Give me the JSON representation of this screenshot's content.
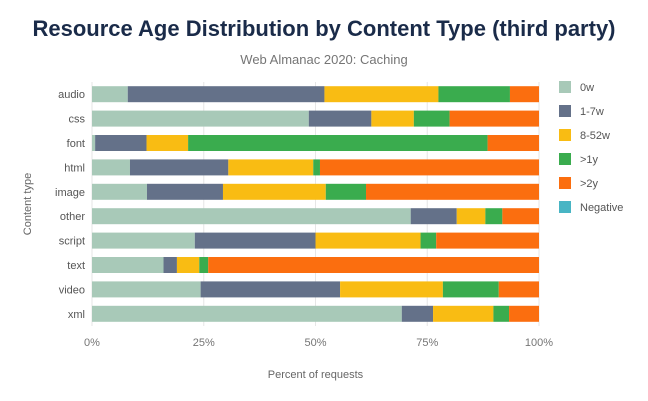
{
  "chart_data": {
    "type": "bar",
    "orientation": "horizontal",
    "stacked": true,
    "title": "Resource Age Distribution by Content Type (third party)",
    "subtitle": "Web Almanac 2020: Caching",
    "xlabel": "Percent of requests",
    "ylabel": "Content type",
    "xlim": [
      0,
      100
    ],
    "x_ticks": [
      "0%",
      "25%",
      "50%",
      "75%",
      "100%"
    ],
    "grid": true,
    "legend_position": "right",
    "categories": [
      "audio",
      "css",
      "font",
      "html",
      "image",
      "other",
      "script",
      "text",
      "video",
      "xml"
    ],
    "series": [
      {
        "name": "0w",
        "color": "#a8c9b8",
        "values": [
          8.0,
          48.5,
          0.7,
          8.5,
          12.3,
          71.3,
          23.0,
          16.0,
          24.3,
          69.3
        ]
      },
      {
        "name": "1-7w",
        "color": "#647189",
        "values": [
          44.0,
          14.0,
          11.5,
          22.0,
          17.0,
          10.3,
          27.0,
          3.0,
          31.2,
          7.0
        ]
      },
      {
        "name": "8-52w",
        "color": "#f9bc13",
        "values": [
          25.5,
          9.5,
          9.3,
          19.0,
          23.0,
          6.4,
          23.5,
          5.0,
          23.0,
          13.5
        ]
      },
      {
        "name": ">1y",
        "color": "#3aac4e",
        "values": [
          16.0,
          8.0,
          67.0,
          1.5,
          9.0,
          3.8,
          3.5,
          2.0,
          12.5,
          3.5
        ]
      },
      {
        "name": ">2y",
        "color": "#fb6e0f",
        "values": [
          6.5,
          20.0,
          11.5,
          49.0,
          38.7,
          8.2,
          23.0,
          74.0,
          9.0,
          6.7
        ]
      },
      {
        "name": "Negative",
        "color": "#48b5c4",
        "values": [
          0,
          0,
          0,
          0,
          0,
          0,
          0,
          0,
          0,
          0
        ]
      }
    ]
  }
}
